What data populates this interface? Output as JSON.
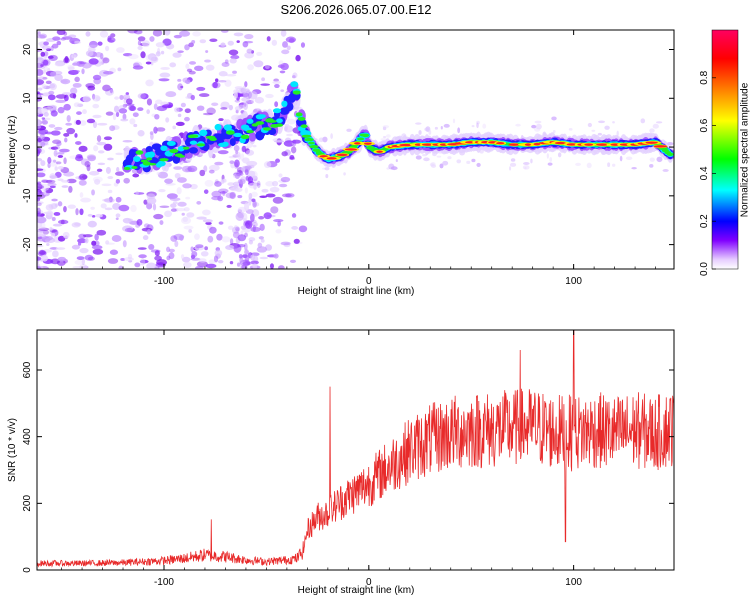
{
  "figure_title": "S206.2026.065.07.00.E12",
  "chart_data": [
    {
      "type": "heatmap",
      "title": "S206.2026.065.07.00.E12",
      "xlabel": "Height of straight line (km)",
      "ylabel": "Frequency (Hz)",
      "xlim": [
        -162,
        149
      ],
      "ylim": [
        -25,
        24
      ],
      "xticks": [
        -100,
        0,
        100
      ],
      "yticks": [
        -20,
        -10,
        0,
        10,
        20
      ],
      "colorbar": {
        "label": "Normalized spectral amplitude",
        "range": [
          0,
          1
        ],
        "ticks": [
          "0.0",
          "0.2",
          "0.4",
          "0.6",
          "0.8"
        ],
        "stops": [
          "#ffffff",
          "#8000ff",
          "#0000ff",
          "#00ffff",
          "#00ff00",
          "#ffff00",
          "#ff8000",
          "#ff0000",
          "#ff0060"
        ]
      },
      "ridge_line": {
        "x": [
          -115,
          -105,
          -95,
          -85,
          -75,
          -65,
          -55,
          -45,
          -40,
          -36,
          -34,
          -30,
          -25,
          -20,
          -15,
          -10,
          -5,
          -2,
          0,
          5,
          10,
          20,
          30,
          40,
          50,
          60,
          70,
          80,
          90,
          100,
          110,
          120,
          130,
          140,
          147
        ],
        "frequency": [
          -3,
          -2,
          -1,
          1,
          2,
          3,
          4,
          5.5,
          8,
          12,
          6,
          2,
          -1,
          -2.5,
          -2,
          -1,
          1,
          3,
          0,
          -1,
          0,
          0.5,
          0.5,
          0.5,
          1,
          1,
          0.5,
          0.5,
          1,
          0.5,
          0.5,
          0.5,
          0.5,
          1,
          -1.5
        ]
      }
    },
    {
      "type": "line",
      "xlabel": "Height of straight line (km)",
      "ylabel": "SNR (10 * v/v)",
      "xlim": [
        -162,
        149
      ],
      "ylim": [
        0,
        720
      ],
      "xticks": [
        -100,
        0,
        100
      ],
      "yticks": [
        0,
        200,
        400,
        600
      ],
      "series": [
        {
          "name": "SNR",
          "color": "#e82a2a",
          "x": [
            -162,
            -140,
            -120,
            -100,
            -90,
            -80,
            -70,
            -60,
            -50,
            -40,
            -35,
            -32,
            -30,
            -25,
            -20,
            -15,
            -10,
            -5,
            0,
            10,
            20,
            30,
            40,
            50,
            60,
            70,
            80,
            90,
            100,
            110,
            120,
            130,
            140,
            149
          ],
          "values": [
            20,
            20,
            22,
            28,
            35,
            45,
            40,
            30,
            25,
            30,
            35,
            60,
            120,
            160,
            170,
            200,
            220,
            240,
            260,
            310,
            360,
            390,
            410,
            420,
            420,
            425,
            430,
            415,
            410,
            420,
            410,
            420,
            410,
            430
          ]
        }
      ],
      "annotations": {
        "spikes": [
          {
            "x": -77,
            "y": 152
          },
          {
            "x": -19,
            "y": 550
          },
          {
            "x": 74,
            "y": 660
          },
          {
            "x": 100,
            "y": 720
          },
          {
            "x": 96,
            "y": 85
          }
        ]
      }
    }
  ]
}
